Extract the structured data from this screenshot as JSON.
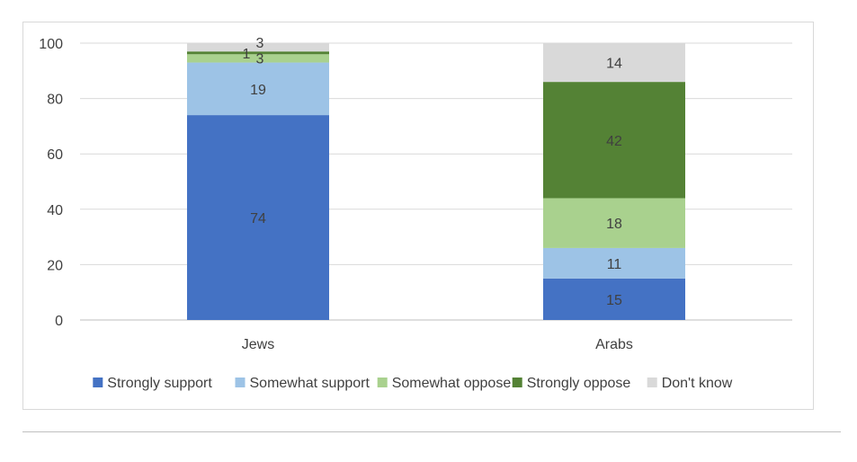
{
  "chart_data": {
    "type": "bar",
    "stacked": true,
    "categories": [
      "Jews",
      "Arabs"
    ],
    "series": [
      {
        "name": "Strongly support",
        "color": "#4472c4",
        "values": [
          74,
          15
        ]
      },
      {
        "name": "Somewhat support",
        "color": "#9dc3e6",
        "values": [
          19,
          11
        ]
      },
      {
        "name": "Somewhat oppose",
        "color": "#a9d18e",
        "values": [
          3,
          18
        ]
      },
      {
        "name": "Strongly oppose",
        "color": "#548235",
        "values": [
          1,
          42
        ]
      },
      {
        "name": "Don't know",
        "color": "#d9d9d9",
        "values": [
          3,
          14
        ]
      }
    ],
    "ylim": [
      0,
      100
    ],
    "yticks": [
      0,
      20,
      40,
      60,
      80,
      100
    ],
    "grid": true,
    "legend": "bottom"
  }
}
